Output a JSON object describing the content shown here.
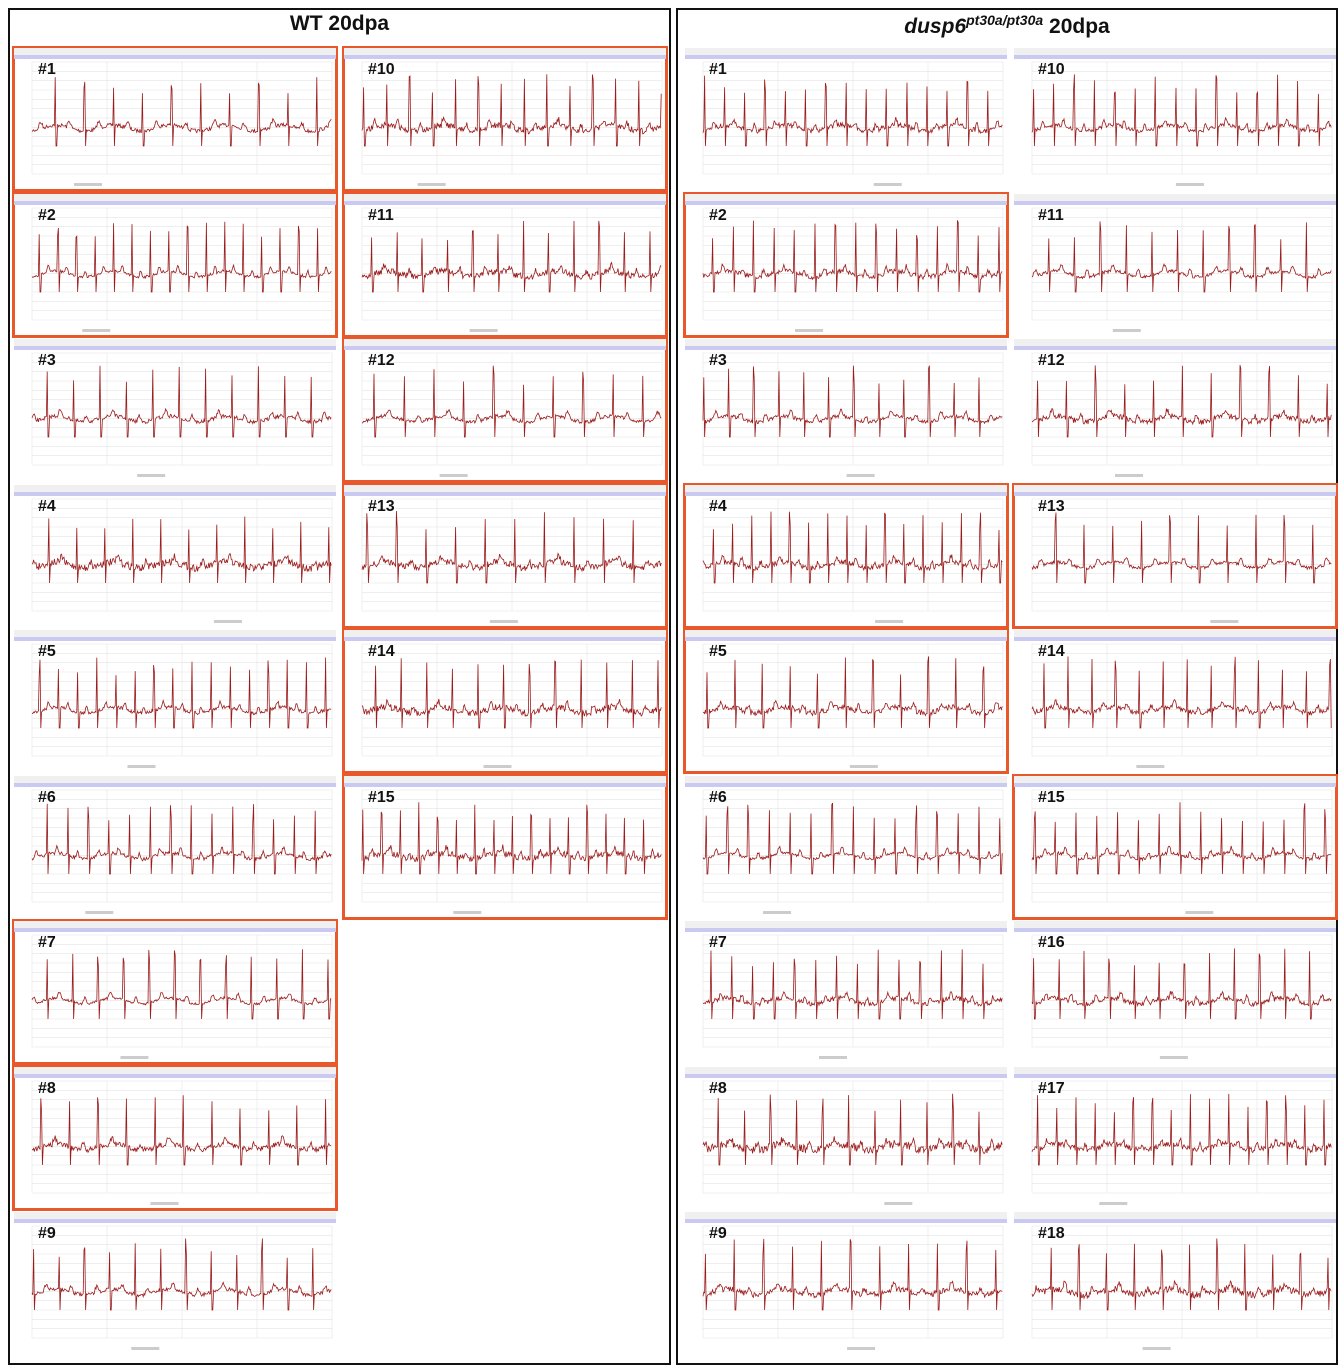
{
  "panels": [
    {
      "title": {
        "main": "WT 20dpa"
      },
      "columns": [
        [
          {
            "label": "#1",
            "highlighted": true
          },
          {
            "label": "#2",
            "highlighted": true
          },
          {
            "label": "#3",
            "highlighted": false
          },
          {
            "label": "#4",
            "highlighted": false
          },
          {
            "label": "#5",
            "highlighted": false
          },
          {
            "label": "#6",
            "highlighted": false
          },
          {
            "label": "#7",
            "highlighted": true
          },
          {
            "label": "#8",
            "highlighted": true
          },
          {
            "label": "#9",
            "highlighted": false
          }
        ],
        [
          {
            "label": "#10",
            "highlighted": true
          },
          {
            "label": "#11",
            "highlighted": true
          },
          {
            "label": "#12",
            "highlighted": true
          },
          {
            "label": "#13",
            "highlighted": true
          },
          {
            "label": "#14",
            "highlighted": true
          },
          {
            "label": "#15",
            "highlighted": true
          }
        ]
      ]
    },
    {
      "title": {
        "gene": "dusp6",
        "allele": "pt30a/pt30a",
        "main": "20dpa"
      },
      "columns": [
        [
          {
            "label": "#1",
            "highlighted": false
          },
          {
            "label": "#2",
            "highlighted": true
          },
          {
            "label": "#3",
            "highlighted": false
          },
          {
            "label": "#4",
            "highlighted": true
          },
          {
            "label": "#5",
            "highlighted": true
          },
          {
            "label": "#6",
            "highlighted": false
          },
          {
            "label": "#7",
            "highlighted": false
          },
          {
            "label": "#8",
            "highlighted": false
          },
          {
            "label": "#9",
            "highlighted": false
          }
        ],
        [
          {
            "label": "#10",
            "highlighted": false
          },
          {
            "label": "#11",
            "highlighted": false
          },
          {
            "label": "#12",
            "highlighted": false
          },
          {
            "label": "#13",
            "highlighted": true
          },
          {
            "label": "#14",
            "highlighted": false
          },
          {
            "label": "#15",
            "highlighted": true
          },
          {
            "label": "#16",
            "highlighted": false
          },
          {
            "label": "#17",
            "highlighted": false
          },
          {
            "label": "#18",
            "highlighted": false
          }
        ]
      ]
    }
  ]
}
